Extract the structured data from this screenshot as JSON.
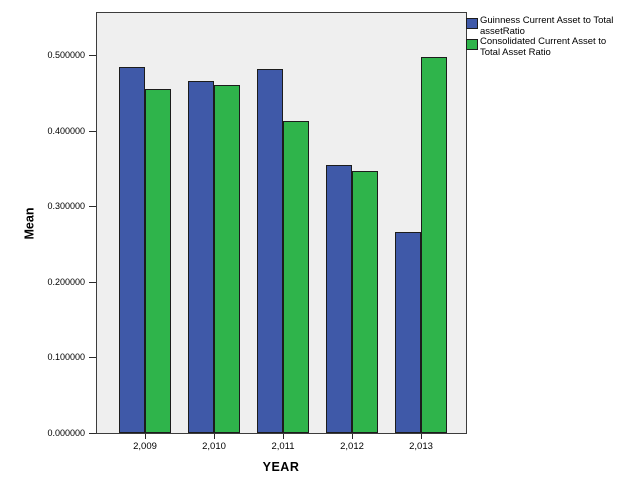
{
  "chart_data": {
    "type": "bar",
    "title": "",
    "categories": [
      "2,009",
      "2,010",
      "2,011",
      "2,012",
      "2,013"
    ],
    "series": [
      {
        "name": "Guinness Current Asset to Total assetRatio",
        "color": "#3F59A8",
        "values": [
          0.484,
          0.465,
          0.481,
          0.355,
          0.266
        ]
      },
      {
        "name": "Consolidated Current Asset to Total Asset Ratio",
        "color": "#2FB44B",
        "values": [
          0.455,
          0.46,
          0.413,
          0.346,
          0.497
        ]
      }
    ],
    "xlabel": "YEAR",
    "ylabel": "Mean",
    "ylim": [
      0,
      0.5556
    ],
    "yticks": [
      "0.000000",
      "0.100000",
      "0.200000",
      "0.300000",
      "0.400000",
      "0.500000"
    ],
    "grid": false,
    "legend_position": "outside-top-right",
    "plot_background": "#EFEFEF",
    "bar_border_color": "#1C1C1C",
    "frame_color": "#3C3C3C"
  }
}
